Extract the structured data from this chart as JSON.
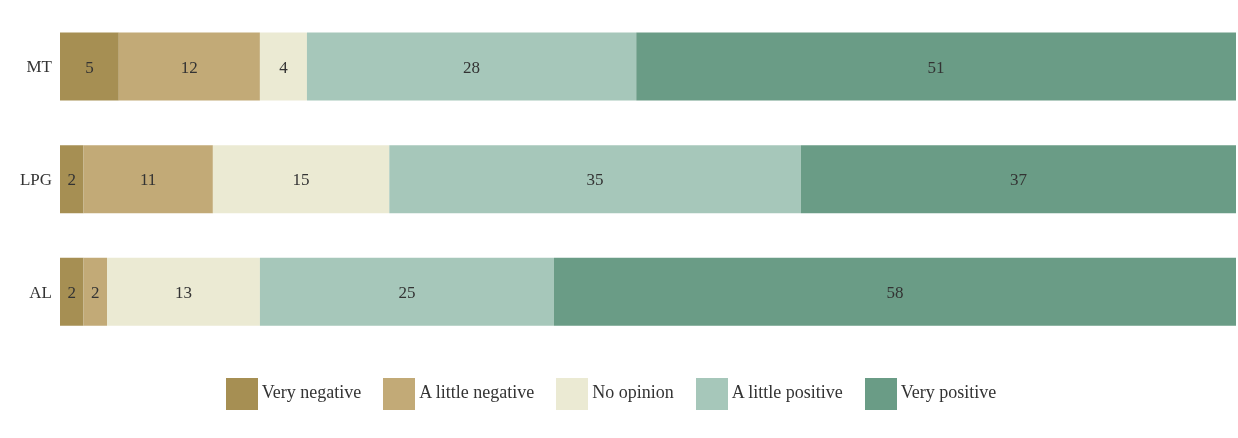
{
  "chart_data": {
    "type": "bar",
    "orientation": "horizontal",
    "stacked": true,
    "data_labels": true,
    "legend": "bottom",
    "grid": false,
    "categories": [
      "MT",
      "LPG",
      "AL"
    ],
    "series": [
      {
        "name": "Very negative",
        "color": "#a68f53",
        "values": [
          5,
          2,
          2
        ]
      },
      {
        "name": "A little negative",
        "color": "#c2aa77",
        "values": [
          12,
          11,
          2
        ]
      },
      {
        "name": "No opinion",
        "color": "#ebead3",
        "values": [
          4,
          15,
          13
        ]
      },
      {
        "name": "A little positive",
        "color": "#a6c7ba",
        "values": [
          28,
          35,
          25
        ]
      },
      {
        "name": "Very positive",
        "color": "#6a9c86",
        "values": [
          51,
          37,
          58
        ]
      }
    ]
  }
}
